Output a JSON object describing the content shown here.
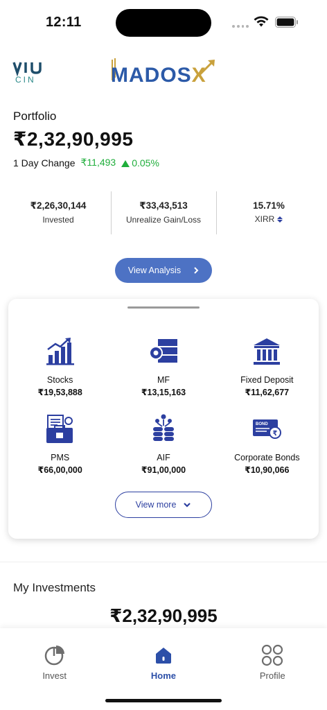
{
  "status": {
    "time": "12:11"
  },
  "brand": {
    "name_main": "MADOS",
    "name_x": "X",
    "left_logo_text": "CIN"
  },
  "portfolio": {
    "label": "Portfolio",
    "value": "₹2,32,90,995",
    "day_change_label": "1 Day Change",
    "day_change_amount": "₹11,493",
    "day_change_pct": "0.05%"
  },
  "stats": [
    {
      "value": "₹2,26,30,144",
      "label": "Invested"
    },
    {
      "value": "₹33,43,513",
      "label": "Unrealize Gain/Loss"
    },
    {
      "value": "15.71%",
      "label": "XIRR"
    }
  ],
  "view_analysis_label": "View Analysis",
  "categories": [
    {
      "name": "Stocks",
      "value": "₹19,53,888",
      "icon": "stocks-chart-icon"
    },
    {
      "name": "MF",
      "value": "₹13,15,163",
      "icon": "mutual-fund-icon"
    },
    {
      "name": "Fixed Deposit",
      "value": "₹11,62,677",
      "icon": "bank-icon"
    },
    {
      "name": "PMS",
      "value": "₹66,00,000",
      "icon": "portfolio-management-icon"
    },
    {
      "name": "AIF",
      "value": "₹91,00,000",
      "icon": "coins-stack-icon"
    },
    {
      "name": "Corporate Bonds",
      "value": "₹10,90,066",
      "icon": "bond-certificate-icon"
    }
  ],
  "bond_icon_text": "BOND",
  "view_more_label": "View more",
  "my_investments": {
    "label": "My Investments",
    "value": "₹2,32,90,995"
  },
  "nav": [
    {
      "label": "Invest",
      "icon": "pie-chart-icon"
    },
    {
      "label": "Home",
      "icon": "home-icon",
      "active": true
    },
    {
      "label": "Profile",
      "icon": "grid-circles-icon"
    }
  ],
  "colors": {
    "primary": "#2c3fa0",
    "button": "#4d72c4",
    "positive": "#1fae3b",
    "brand_blue": "#2c5aa8",
    "brand_gold": "#c9a13c"
  }
}
